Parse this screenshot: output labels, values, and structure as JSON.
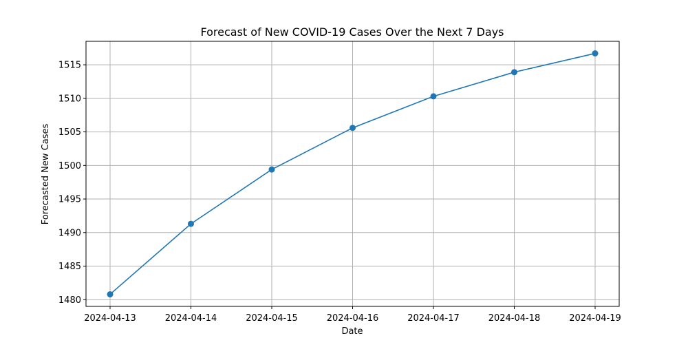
{
  "chart_data": {
    "type": "line",
    "title": "Forecast of New COVID-19 Cases Over the Next 7 Days",
    "xlabel": "Date",
    "ylabel": "Forecasted New Cases",
    "categories": [
      "2024-04-13",
      "2024-04-14",
      "2024-04-15",
      "2024-04-16",
      "2024-04-17",
      "2024-04-18",
      "2024-04-19"
    ],
    "series": [
      {
        "values": [
          1480.8,
          1491.3,
          1499.4,
          1505.6,
          1510.3,
          1513.9,
          1516.7
        ],
        "color": "#1f77b4",
        "marker": "circle"
      }
    ],
    "yticks": [
      1480,
      1485,
      1490,
      1495,
      1500,
      1505,
      1510,
      1515
    ],
    "ylim": [
      1479.0,
      1518.5
    ],
    "grid": true,
    "legend": false
  }
}
